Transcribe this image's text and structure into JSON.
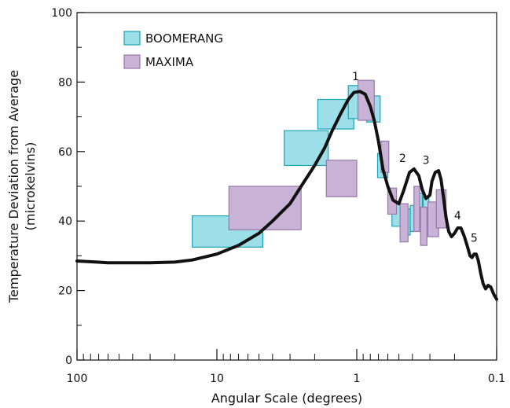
{
  "chart_data": {
    "type": "scatter",
    "xlabel": "Angular Scale (degrees)",
    "ylabel": "Temperature Deviation from Average",
    "ylabel_unit": "(microkelvins)",
    "x_scale": "log-reversed",
    "xlim": [
      100,
      0.1
    ],
    "ylim": [
      0,
      100
    ],
    "x_ticks": [
      100,
      10,
      1,
      0.1
    ],
    "x_tick_labels": [
      "100",
      "10",
      "1",
      "0.1"
    ],
    "y_ticks": [
      0,
      20,
      40,
      60,
      80,
      100
    ],
    "y_tick_labels": [
      "0",
      "20",
      "40",
      "60",
      "80",
      "100"
    ],
    "legend_position": "top-left",
    "series": [
      {
        "name": "BOOMERANG",
        "color": "#9ddfe8",
        "edge": "#1aa5b5",
        "boxes": [
          {
            "x": [
              4.7,
              15
            ],
            "y": [
              32.5,
              41.5
            ]
          },
          {
            "x": [
              1.6,
              3.3
            ],
            "y": [
              56,
              66
            ]
          },
          {
            "x": [
              1.05,
              1.9
            ],
            "y": [
              66.5,
              75
            ]
          },
          {
            "x": [
              0.89,
              1.15
            ],
            "y": [
              69.5,
              79
            ]
          },
          {
            "x": [
              0.68,
              0.85
            ],
            "y": [
              68.5,
              76
            ]
          },
          {
            "x": [
              0.6,
              0.71
            ],
            "y": [
              52.5,
              59.5
            ]
          },
          {
            "x": [
              0.49,
              0.56
            ],
            "y": [
              38.5,
              45
            ]
          },
          {
            "x": [
              0.415,
              0.47
            ],
            "y": [
              36,
              43.5
            ]
          },
          {
            "x": [
              0.375,
              0.415
            ],
            "y": [
              37,
              44.5
            ]
          },
          {
            "x": [
              0.34,
              0.375
            ],
            "y": [
              40,
              48
            ]
          },
          {
            "x": [
              0.305,
              0.335
            ],
            "y": [
              38.5,
              47
            ]
          }
        ]
      },
      {
        "name": "MAXIMA",
        "color": "#c8b2d6",
        "edge": "#9677ad",
        "boxes": [
          {
            "x": [
              2.5,
              8.2
            ],
            "y": [
              37.5,
              50
            ]
          },
          {
            "x": [
              1.0,
              1.65
            ],
            "y": [
              47,
              57.5
            ]
          },
          {
            "x": [
              0.75,
              0.98
            ],
            "y": [
              69,
              80.5
            ]
          },
          {
            "x": [
              0.59,
              0.67
            ],
            "y": [
              54,
              63
            ]
          },
          {
            "x": [
              0.52,
              0.6
            ],
            "y": [
              42,
              49.5
            ]
          },
          {
            "x": [
              0.43,
              0.49
            ],
            "y": [
              34,
              45
            ]
          },
          {
            "x": [
              0.355,
              0.39
            ],
            "y": [
              37,
              50
            ]
          },
          {
            "x": [
              0.315,
              0.35
            ],
            "y": [
              33,
              44
            ]
          },
          {
            "x": [
              0.26,
              0.31
            ],
            "y": [
              35.5,
              45.5
            ]
          },
          {
            "x": [
              0.23,
              0.27
            ],
            "y": [
              38,
              49
            ]
          }
        ]
      }
    ],
    "model_curve": {
      "x": [
        100,
        60,
        30,
        20,
        15,
        10,
        7,
        5,
        4,
        3,
        2.5,
        2,
        1.7,
        1.5,
        1.3,
        1.15,
        1.05,
        0.95,
        0.87,
        0.8,
        0.75,
        0.7,
        0.65,
        0.6,
        0.55,
        0.5,
        0.46,
        0.42,
        0.39,
        0.36,
        0.34,
        0.32,
        0.3,
        0.29,
        0.275,
        0.26,
        0.25,
        0.24,
        0.23,
        0.22,
        0.21,
        0.2,
        0.19,
        0.18,
        0.17,
        0.16,
        0.155,
        0.15,
        0.145,
        0.14,
        0.135,
        0.13,
        0.125,
        0.12,
        0.115,
        0.11,
        0.105,
        0.1
      ],
      "y": [
        28.5,
        28,
        28,
        28.2,
        28.8,
        30.5,
        33,
        36.5,
        40,
        45,
        50,
        56,
        61,
        66,
        71,
        75,
        77,
        77.3,
        76.5,
        73,
        69,
        63,
        55,
        50,
        46,
        45,
        49,
        54,
        55,
        53,
        49,
        46.5,
        47.5,
        51.5,
        54,
        54.5,
        52,
        47,
        41,
        37,
        35.5,
        36.5,
        38,
        38,
        35.5,
        32,
        30,
        29.5,
        30.5,
        30.5,
        28.5,
        25,
        22,
        20.5,
        21.5,
        21,
        19,
        17.5
      ]
    },
    "peak_labels": [
      {
        "text": "1",
        "x": 1.02,
        "y": 80.5
      },
      {
        "text": "2",
        "x": 0.47,
        "y": 57
      },
      {
        "text": "3",
        "x": 0.32,
        "y": 56.5
      },
      {
        "text": "4",
        "x": 0.19,
        "y": 40.5
      },
      {
        "text": "5",
        "x": 0.145,
        "y": 34
      }
    ]
  }
}
